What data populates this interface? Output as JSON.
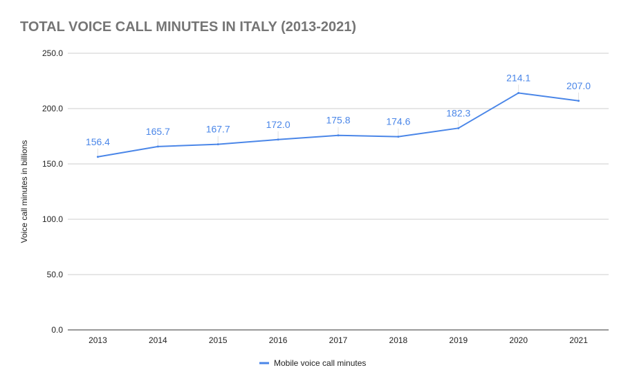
{
  "chart_data": {
    "type": "line",
    "title": "TOTAL VOICE CALL MINUTES IN ITALY (2013-2021)",
    "xlabel": "",
    "ylabel": "Voice call minutes in billions",
    "categories": [
      "2013",
      "2014",
      "2015",
      "2016",
      "2017",
      "2018",
      "2019",
      "2020",
      "2021"
    ],
    "series": [
      {
        "name": "Mobile voice call minutes",
        "values": [
          156.4,
          165.7,
          167.7,
          172.0,
          175.8,
          174.6,
          182.3,
          214.1,
          207.0
        ],
        "labels": [
          "156.4",
          "165.7",
          "167.7",
          "172.0",
          "175.8",
          "174.6",
          "182.3",
          "214.1",
          "207.0"
        ],
        "color": "#4a86e8"
      }
    ],
    "ylim": [
      0,
      250
    ],
    "yticks": [
      "0.0",
      "50.0",
      "100.0",
      "150.0",
      "200.0",
      "250.0"
    ],
    "grid": true,
    "legend": "bottom"
  }
}
